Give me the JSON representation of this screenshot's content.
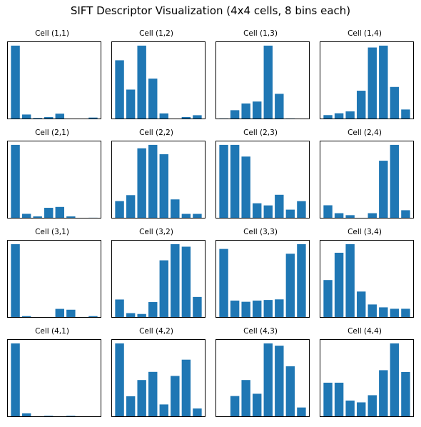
{
  "title": "SIFT Descriptor Visualization (4x4 cells, 8 bins each)",
  "bar_color": "#1f77b4",
  "chart_data": [
    {
      "type": "bar",
      "title": "Cell (1,1)",
      "categories": [
        0,
        1,
        2,
        3,
        4,
        5,
        6,
        7
      ],
      "values": [
        0.84,
        0.05,
        0.01,
        0.02,
        0.06,
        0.0,
        0.0,
        0.015
      ]
    },
    {
      "type": "bar",
      "title": "Cell (1,2)",
      "categories": [
        0,
        1,
        2,
        3,
        4,
        5,
        6,
        7
      ],
      "values": [
        0.16,
        0.08,
        0.2,
        0.11,
        0.015,
        0.0,
        0.005,
        0.01
      ]
    },
    {
      "type": "bar",
      "title": "Cell (1,3)",
      "categories": [
        0,
        1,
        2,
        3,
        4,
        5,
        6,
        7
      ],
      "values": [
        0.005,
        0.09,
        0.16,
        0.18,
        0.76,
        0.26,
        0.005,
        0.0
      ]
    },
    {
      "type": "bar",
      "title": "Cell (1,4)",
      "categories": [
        0,
        1,
        2,
        3,
        4,
        5,
        6,
        7
      ],
      "values": [
        0.02,
        0.03,
        0.04,
        0.15,
        0.38,
        0.39,
        0.17,
        0.05
      ]
    },
    {
      "type": "bar",
      "title": "Cell (2,1)",
      "categories": [
        0,
        1,
        2,
        3,
        4,
        5,
        6,
        7
      ],
      "values": [
        0.85,
        0.05,
        0.02,
        0.12,
        0.13,
        0.02,
        0.0,
        0.005
      ]
    },
    {
      "type": "bar",
      "title": "Cell (2,2)",
      "categories": [
        0,
        1,
        2,
        3,
        4,
        5,
        6,
        7
      ],
      "values": [
        0.2,
        0.27,
        0.82,
        0.86,
        0.75,
        0.22,
        0.05,
        0.05
      ]
    },
    {
      "type": "bar",
      "title": "Cell (2,3)",
      "categories": [
        0,
        1,
        2,
        3,
        4,
        5,
        6,
        7
      ],
      "values": [
        0.69,
        0.69,
        0.58,
        0.14,
        0.12,
        0.22,
        0.08,
        0.16
      ]
    },
    {
      "type": "bar",
      "title": "Cell (2,4)",
      "categories": [
        0,
        1,
        2,
        3,
        4,
        5,
        6,
        7
      ],
      "values": [
        0.13,
        0.05,
        0.03,
        0.0,
        0.05,
        0.58,
        0.74,
        0.08
      ]
    },
    {
      "type": "bar",
      "title": "Cell (3,1)",
      "categories": [
        0,
        1,
        2,
        3,
        4,
        5,
        6,
        7
      ],
      "values": [
        0.86,
        0.015,
        0.0,
        0.005,
        0.1,
        0.09,
        0.005,
        0.015
      ]
    },
    {
      "type": "bar",
      "title": "Cell (3,2)",
      "categories": [
        0,
        1,
        2,
        3,
        4,
        5,
        6,
        7
      ],
      "values": [
        0.21,
        0.05,
        0.04,
        0.18,
        0.67,
        0.86,
        0.83,
        0.24
      ]
    },
    {
      "type": "bar",
      "title": "Cell (3,3)",
      "categories": [
        0,
        1,
        2,
        3,
        4,
        5,
        6,
        7
      ],
      "values": [
        0.57,
        0.14,
        0.13,
        0.14,
        0.145,
        0.15,
        0.53,
        0.61
      ]
    },
    {
      "type": "bar",
      "title": "Cell (3,4)",
      "categories": [
        0,
        1,
        2,
        3,
        4,
        5,
        6,
        7
      ],
      "values": [
        0.26,
        0.45,
        0.51,
        0.18,
        0.09,
        0.07,
        0.06,
        0.06
      ]
    },
    {
      "type": "bar",
      "title": "Cell (4,1)",
      "categories": [
        0,
        1,
        2,
        3,
        4,
        5,
        6,
        7
      ],
      "values": [
        0.88,
        0.04,
        0.0,
        0.01,
        0.0,
        0.01,
        0.0,
        0.0
      ]
    },
    {
      "type": "bar",
      "title": "Cell (4,2)",
      "categories": [
        0,
        1,
        2,
        3,
        4,
        5,
        6,
        7
      ],
      "values": [
        0.18,
        0.05,
        0.09,
        0.11,
        0.03,
        0.1,
        0.14,
        0.02
      ]
    },
    {
      "type": "bar",
      "title": "Cell (4,3)",
      "categories": [
        0,
        1,
        2,
        3,
        4,
        5,
        6,
        7
      ],
      "values": [
        0.0,
        0.09,
        0.16,
        0.1,
        0.32,
        0.31,
        0.22,
        0.04
      ]
    },
    {
      "type": "bar",
      "title": "Cell (4,4)",
      "categories": [
        0,
        1,
        2,
        3,
        4,
        5,
        6,
        7
      ],
      "values": [
        0.19,
        0.19,
        0.09,
        0.08,
        0.12,
        0.26,
        0.41,
        0.25
      ]
    }
  ]
}
